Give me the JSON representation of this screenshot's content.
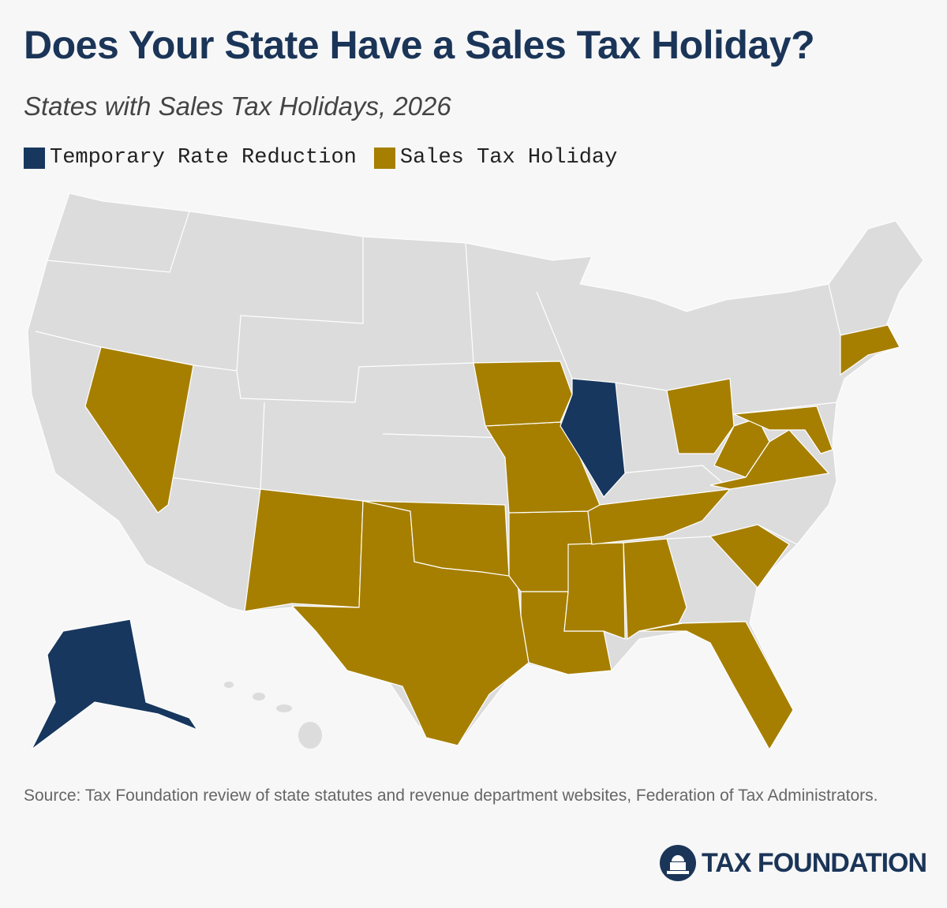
{
  "title": "Does Your State Have a Sales Tax Holiday?",
  "subtitle": "States with Sales Tax Holidays, 2026",
  "legend": [
    {
      "label": "Temporary Rate Reduction",
      "color": "#17375e"
    },
    {
      "label": "Sales Tax Holiday",
      "color": "#a67f00"
    }
  ],
  "source": "Source: Tax Foundation review of state statutes and revenue department websites, Federation of Tax Administrators.",
  "logo": "TAX FOUNDATION"
}
